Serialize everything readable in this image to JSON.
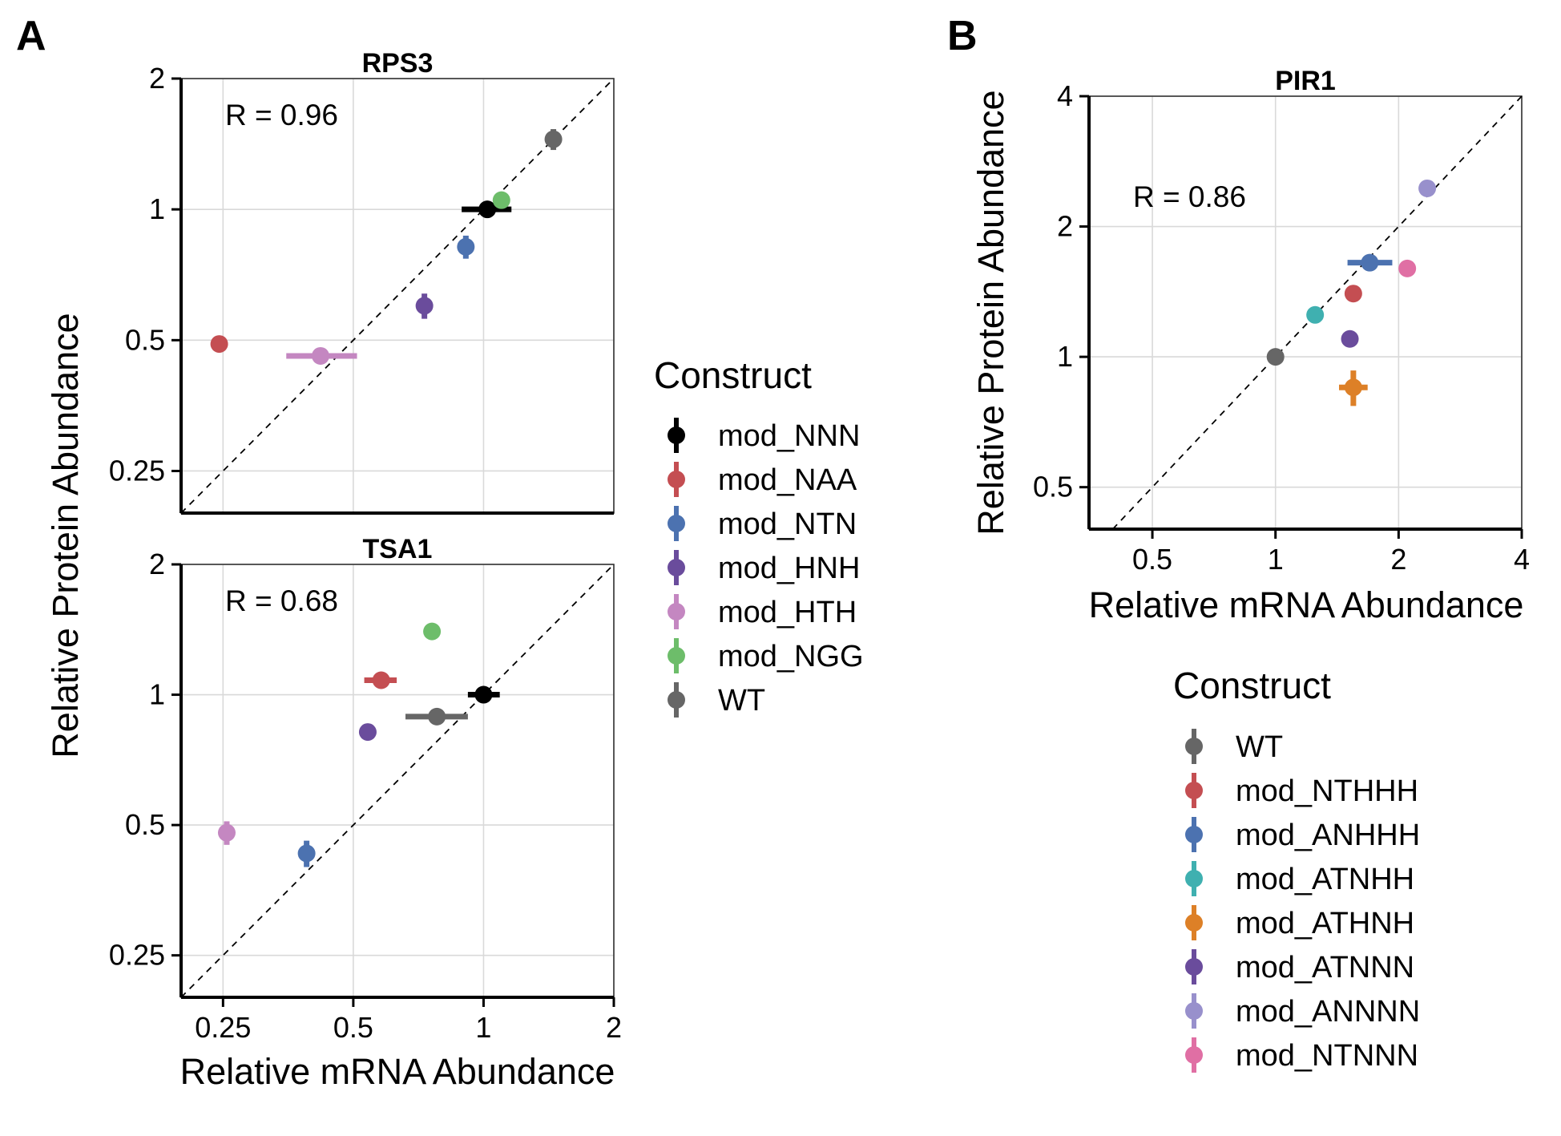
{
  "figure": {
    "panel_labels": [
      "A",
      "B"
    ],
    "legend_a_title": "Construct",
    "legend_b_title": "Construct"
  },
  "chart_data": [
    {
      "type": "scatter",
      "panel": "A",
      "title": "RPS3",
      "annotation": "R = 0.96",
      "xlabel": "Relative mRNA Abundance",
      "ylabel": "Relative Protein Abundance",
      "x_scale": "log2",
      "y_scale": "log2",
      "xlim": [
        0.2,
        2
      ],
      "ylim": [
        0.2,
        2
      ],
      "x_ticks": [
        "0.25",
        "0.5",
        "1",
        "2"
      ],
      "y_ticks": [
        "0.25",
        "0.5",
        "1",
        "2"
      ],
      "reference_line": "y = x",
      "points": [
        {
          "construct": "mod_NNN",
          "x": 1.02,
          "y": 1.0,
          "x_err": [
            0.89,
            1.16
          ],
          "y_err": [
            0.98,
            1.02
          ],
          "color": "#000000"
        },
        {
          "construct": "mod_NAA",
          "x": 0.245,
          "y": 0.49,
          "x_err": [
            0.24,
            0.25
          ],
          "y_err": [
            0.475,
            0.505
          ],
          "color": "#c44e52"
        },
        {
          "construct": "mod_NTN",
          "x": 0.91,
          "y": 0.82,
          "x_err": [
            0.9,
            0.92
          ],
          "y_err": [
            0.77,
            0.87
          ],
          "color": "#4c72b0"
        },
        {
          "construct": "mod_HNH",
          "x": 0.73,
          "y": 0.6,
          "x_err": [
            0.72,
            0.74
          ],
          "y_err": [
            0.56,
            0.64
          ],
          "color": "#6a4c9c"
        },
        {
          "construct": "mod_HTH",
          "x": 0.42,
          "y": 0.46,
          "x_err": [
            0.35,
            0.51
          ],
          "y_err": [
            0.45,
            0.47
          ],
          "color": "#c487c1"
        },
        {
          "construct": "mod_NGG",
          "x": 1.1,
          "y": 1.05,
          "x_err": [
            1.09,
            1.11
          ],
          "y_err": [
            1.03,
            1.07
          ],
          "color": "#6dbd6a"
        },
        {
          "construct": "WT",
          "x": 1.45,
          "y": 1.45,
          "x_err": [
            1.44,
            1.46
          ],
          "y_err": [
            1.37,
            1.53
          ],
          "color": "#666666"
        }
      ]
    },
    {
      "type": "scatter",
      "panel": "A",
      "title": "TSA1",
      "annotation": "R = 0.68",
      "xlabel": "Relative mRNA Abundance",
      "ylabel": "Relative Protein Abundance",
      "x_scale": "log2",
      "y_scale": "log2",
      "xlim": [
        0.2,
        2
      ],
      "ylim": [
        0.2,
        2
      ],
      "x_ticks": [
        "0.25",
        "0.5",
        "1",
        "2"
      ],
      "y_ticks": [
        "0.25",
        "0.5",
        "1",
        "2"
      ],
      "reference_line": "y = x",
      "points": [
        {
          "construct": "mod_NNN",
          "x": 1.0,
          "y": 1.0,
          "x_err": [
            0.92,
            1.09
          ],
          "y_err": [
            0.98,
            1.02
          ],
          "color": "#000000"
        },
        {
          "construct": "mod_NAA",
          "x": 0.58,
          "y": 1.08,
          "x_err": [
            0.53,
            0.63
          ],
          "y_err": [
            1.06,
            1.1
          ],
          "color": "#c44e52"
        },
        {
          "construct": "mod_NTN",
          "x": 0.39,
          "y": 0.43,
          "x_err": [
            0.38,
            0.4
          ],
          "y_err": [
            0.4,
            0.46
          ],
          "color": "#4c72b0"
        },
        {
          "construct": "mod_HNH",
          "x": 0.54,
          "y": 0.82,
          "x_err": [
            0.53,
            0.55
          ],
          "y_err": [
            0.8,
            0.84
          ],
          "color": "#6a4c9c"
        },
        {
          "construct": "mod_HTH",
          "x": 0.255,
          "y": 0.48,
          "x_err": [
            0.25,
            0.26
          ],
          "y_err": [
            0.45,
            0.51
          ],
          "color": "#c487c1"
        },
        {
          "construct": "mod_NGG",
          "x": 0.76,
          "y": 1.4,
          "x_err": [
            0.75,
            0.77
          ],
          "y_err": [
            1.37,
            1.43
          ],
          "color": "#6dbd6a"
        },
        {
          "construct": "WT",
          "x": 0.78,
          "y": 0.89,
          "x_err": [
            0.66,
            0.92
          ],
          "y_err": [
            0.87,
            0.91
          ],
          "color": "#666666"
        }
      ]
    },
    {
      "type": "scatter",
      "panel": "B",
      "title": "PIR1",
      "annotation": "R = 0.86",
      "xlabel": "Relative mRNA Abundance",
      "ylabel": "Relative Protein Abundance",
      "x_scale": "log2",
      "y_scale": "log2",
      "xlim": [
        0.35,
        4
      ],
      "ylim": [
        0.4,
        4
      ],
      "x_ticks": [
        "0.5",
        "1",
        "2",
        "4"
      ],
      "y_ticks": [
        "0.5",
        "1",
        "2",
        "4"
      ],
      "reference_line": "y = x",
      "points": [
        {
          "construct": "WT",
          "x": 1.0,
          "y": 1.0,
          "x_err": [
            0.99,
            1.01
          ],
          "y_err": [
            0.98,
            1.02
          ],
          "color": "#666666"
        },
        {
          "construct": "mod_NTHHH",
          "x": 1.55,
          "y": 1.4,
          "x_err": [
            1.54,
            1.56
          ],
          "y_err": [
            1.37,
            1.43
          ],
          "color": "#c44e52"
        },
        {
          "construct": "mod_ANHHH",
          "x": 1.7,
          "y": 1.65,
          "x_err": [
            1.5,
            1.93
          ],
          "y_err": [
            1.62,
            1.68
          ],
          "color": "#4c72b0"
        },
        {
          "construct": "mod_ATNHH",
          "x": 1.25,
          "y": 1.25,
          "x_err": [
            1.24,
            1.26
          ],
          "y_err": [
            1.22,
            1.28
          ],
          "color": "#3fb0b0"
        },
        {
          "construct": "mod_ATHNH",
          "x": 1.55,
          "y": 0.85,
          "x_err": [
            1.43,
            1.68
          ],
          "y_err": [
            0.77,
            0.93
          ],
          "color": "#dd8027"
        },
        {
          "construct": "mod_ATNNN",
          "x": 1.52,
          "y": 1.1,
          "x_err": [
            1.51,
            1.53
          ],
          "y_err": [
            1.08,
            1.12
          ],
          "color": "#6a4c9c"
        },
        {
          "construct": "mod_ANNNN",
          "x": 2.35,
          "y": 2.45,
          "x_err": [
            2.34,
            2.36
          ],
          "y_err": [
            2.4,
            2.5
          ],
          "color": "#9890cc"
        },
        {
          "construct": "mod_NTNNN",
          "x": 2.1,
          "y": 1.6,
          "x_err": [
            2.09,
            2.11
          ],
          "y_err": [
            1.57,
            1.63
          ],
          "color": "#e06fa4"
        }
      ]
    }
  ],
  "legend_a": [
    {
      "label": "mod_NNN",
      "color": "#000000"
    },
    {
      "label": "mod_NAA",
      "color": "#c44e52"
    },
    {
      "label": "mod_NTN",
      "color": "#4c72b0"
    },
    {
      "label": "mod_HNH",
      "color": "#6a4c9c"
    },
    {
      "label": "mod_HTH",
      "color": "#c487c1"
    },
    {
      "label": "mod_NGG",
      "color": "#6dbd6a"
    },
    {
      "label": "WT",
      "color": "#666666"
    }
  ],
  "legend_b": [
    {
      "label": "WT",
      "color": "#666666"
    },
    {
      "label": "mod_NTHHH",
      "color": "#c44e52"
    },
    {
      "label": "mod_ANHHH",
      "color": "#4c72b0"
    },
    {
      "label": "mod_ATNHH",
      "color": "#3fb0b0"
    },
    {
      "label": "mod_ATHNH",
      "color": "#dd8027"
    },
    {
      "label": "mod_ATNNN",
      "color": "#6a4c9c"
    },
    {
      "label": "mod_ANNNN",
      "color": "#9890cc"
    },
    {
      "label": "mod_NTNNN",
      "color": "#e06fa4"
    }
  ]
}
